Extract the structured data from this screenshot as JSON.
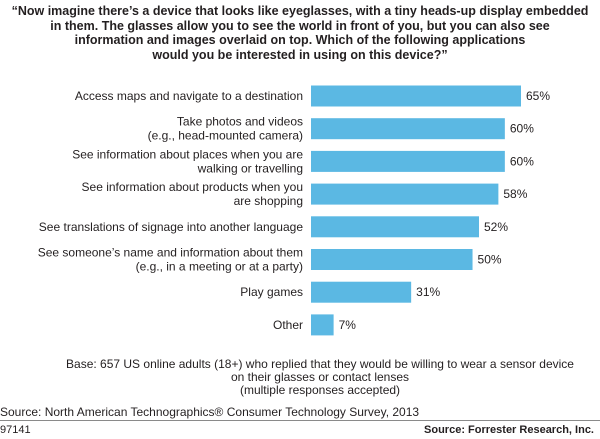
{
  "title": "“Now imagine there’s a device that looks like eyeglasses, with a tiny heads-up display embedded\nin them. The glasses allow you to see the world in front of you, but you can also see\ninformation and images overlaid on top. Which of the following applications\nwould you be interested in using on this device?”",
  "base_note": "Base: 657 US online adults (18+) who replied that they would be willing to wear a sensor device\non their glasses or contact lenses\n(multiple responses accepted)",
  "source_line": "Source: North American Technographics® Consumer Technology Survey, 2013",
  "figure_id": "97141",
  "footer_source": "Source: Forrester Research, Inc.",
  "colors": {
    "bar": "#5bb8e3",
    "text": "#231f20",
    "rule": "#8a8a8a"
  },
  "chart_data": {
    "type": "bar",
    "orientation": "horizontal",
    "categories": [
      "Access maps and navigate to a destination",
      "Take photos and videos\n(e.g., head-mounted camera)",
      "See information about places when you are\nwalking or travelling",
      "See information about products when you\nare shopping",
      "See translations of signage into another language",
      "See someone’s name and information about them\n(e.g., in a meeting or at a party)",
      "Play games",
      "Other"
    ],
    "values": [
      65,
      60,
      60,
      58,
      52,
      50,
      31,
      7
    ],
    "value_labels": [
      "65%",
      "60%",
      "60%",
      "58%",
      "52%",
      "50%",
      "31%",
      "7%"
    ],
    "xlim": [
      0,
      65
    ],
    "grid": false,
    "legend": "none"
  }
}
